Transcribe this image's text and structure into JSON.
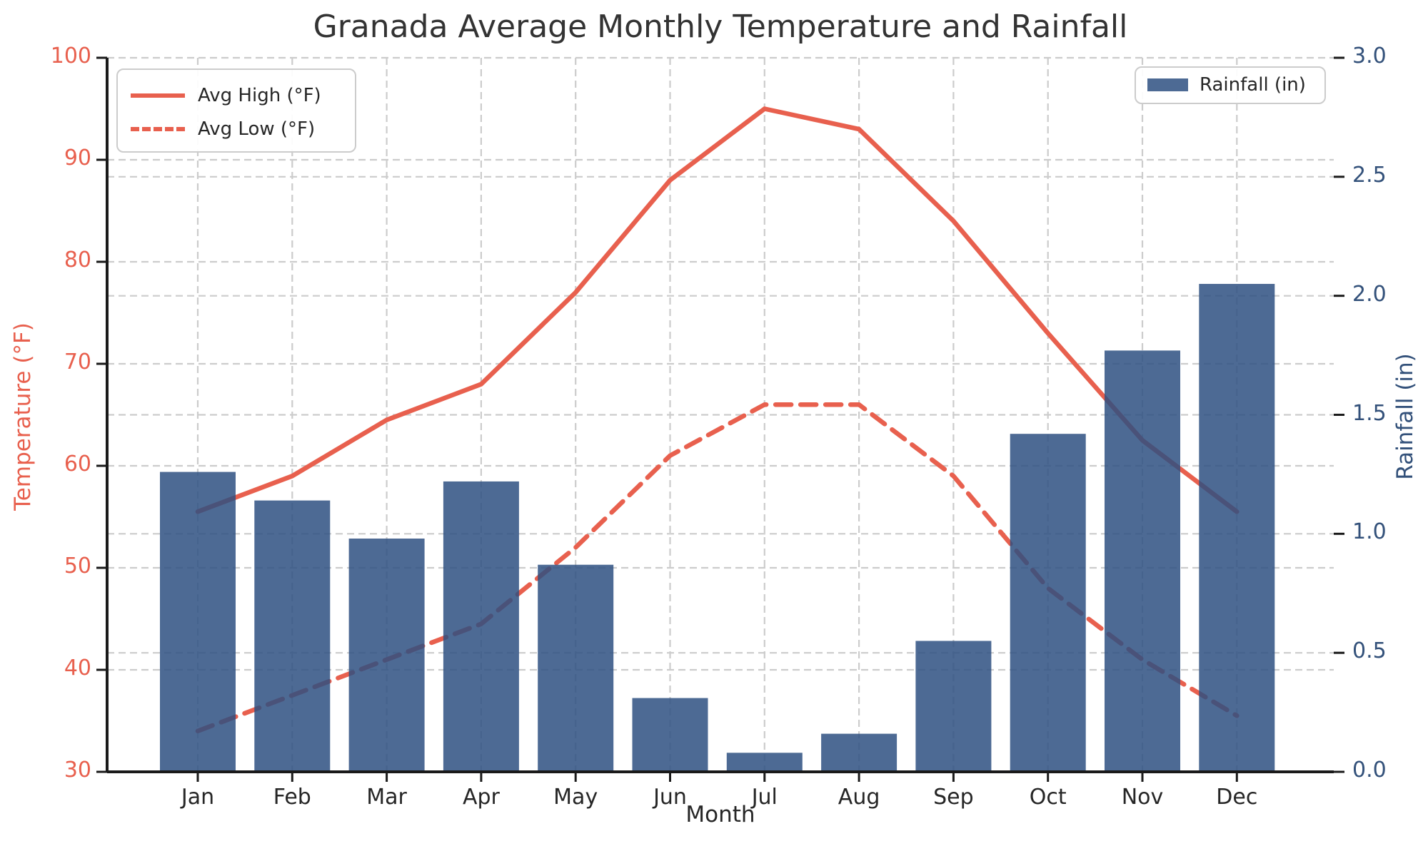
{
  "title": "Granada Average Monthly Temperature and Rainfall",
  "axes": {
    "x_label": "Month",
    "y_left_label": "Temperature (°F)",
    "y_right_label": "Rainfall (in)",
    "y_left_tick_labels": [
      "100",
      "90",
      "80",
      "70",
      "60",
      "50",
      "40",
      "30"
    ],
    "y_right_tick_labels": [
      "3.0",
      "2.5",
      "2.0",
      "1.5",
      "1.0",
      "0.5",
      "0.0"
    ]
  },
  "legend_temp": {
    "high_label": "Avg High (°F)",
    "low_label": "Avg Low (°F)"
  },
  "legend_rain": {
    "label": "Rainfall (in)"
  },
  "colors": {
    "temp_line": "#e8604e",
    "temp_axis_text": "#e8604e",
    "rain_axis_text": "#33517a",
    "bar_fill": "#2e5081",
    "bar_alpha": 0.85,
    "grid": "#cccccc",
    "spine": "#1a1a1a",
    "title_text": "#333333"
  },
  "chart_data": {
    "type": "bar",
    "subtype": "bar+line dual-axis",
    "title": "Granada Average Monthly Temperature and Rainfall",
    "xlabel": "Month",
    "ylabel_left": "Temperature (°F)",
    "ylabel_right": "Rainfall (in)",
    "categories": [
      "Jan",
      "Feb",
      "Mar",
      "Apr",
      "May",
      "Jun",
      "Jul",
      "Aug",
      "Sep",
      "Oct",
      "Nov",
      "Dec"
    ],
    "series": [
      {
        "name": "Avg High (°F)",
        "type": "line",
        "style": "solid",
        "axis": "left",
        "values": [
          55.5,
          59,
          64.5,
          68,
          77,
          88,
          95,
          93,
          84,
          73,
          62.5,
          55.5
        ]
      },
      {
        "name": "Avg Low (°F)",
        "type": "line",
        "style": "dashed",
        "axis": "left",
        "values": [
          34,
          37.5,
          41,
          44.5,
          52,
          61,
          66,
          66,
          59,
          48,
          41,
          35.5
        ]
      },
      {
        "name": "Rainfall (in)",
        "type": "bar",
        "axis": "right",
        "values": [
          1.26,
          1.14,
          0.98,
          1.22,
          0.87,
          0.31,
          0.08,
          0.16,
          0.55,
          1.42,
          1.77,
          2.05
        ]
      }
    ],
    "y_left": {
      "min": 30,
      "max": 100,
      "ticks": [
        30,
        40,
        50,
        60,
        70,
        80,
        90,
        100
      ]
    },
    "y_right": {
      "min": 0,
      "max": 3,
      "ticks": [
        0,
        0.5,
        1,
        1.5,
        2,
        2.5,
        3
      ]
    },
    "grid": true,
    "legend_positions": [
      "upper left",
      "upper right"
    ]
  }
}
